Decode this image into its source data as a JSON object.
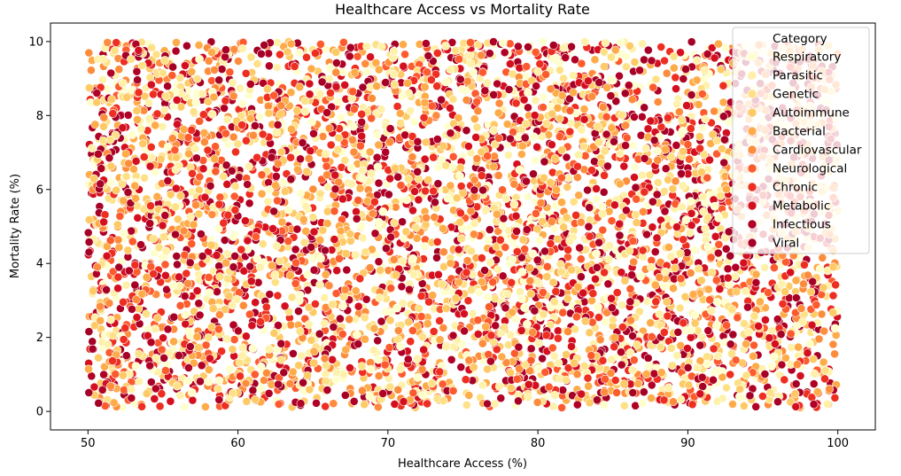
{
  "chart_data": {
    "type": "scatter",
    "title": "Healthcare Access vs Mortality Rate",
    "xlabel": "Healthcare Access (%)",
    "ylabel": "Mortality Rate (%)",
    "xlim": [
      47.5,
      102.5
    ],
    "ylim": [
      -0.5,
      10.5
    ],
    "x_ticks": [
      50,
      60,
      70,
      80,
      90,
      100
    ],
    "y_ticks": [
      0,
      2,
      4,
      6,
      8,
      10
    ],
    "grid": false,
    "legend": {
      "title": "Category",
      "placement": "top-right"
    },
    "series": [
      {
        "name": "Respiratory",
        "color": "#ffffcc",
        "x_range": [
          50,
          100
        ],
        "y_range": [
          0.1,
          10
        ]
      },
      {
        "name": "Parasitic",
        "color": "#fff1a9",
        "x_range": [
          50,
          100
        ],
        "y_range": [
          0.1,
          10
        ]
      },
      {
        "name": "Genetic",
        "color": "#fee187",
        "x_range": [
          50,
          100
        ],
        "y_range": [
          0.1,
          10
        ]
      },
      {
        "name": "Autoimmune",
        "color": "#feca66",
        "x_range": [
          50,
          100
        ],
        "y_range": [
          0.1,
          10
        ]
      },
      {
        "name": "Bacterial",
        "color": "#feab49",
        "x_range": [
          50,
          100
        ],
        "y_range": [
          0.1,
          10
        ]
      },
      {
        "name": "Cardiovascular",
        "color": "#fd8d3c",
        "x_range": [
          50,
          100
        ],
        "y_range": [
          0.1,
          10
        ]
      },
      {
        "name": "Neurological",
        "color": "#fc5b2e",
        "x_range": [
          50,
          100
        ],
        "y_range": [
          0.1,
          10
        ]
      },
      {
        "name": "Chronic",
        "color": "#ed2e21",
        "x_range": [
          50,
          100
        ],
        "y_range": [
          0.1,
          10
        ]
      },
      {
        "name": "Metabolic",
        "color": "#d41020",
        "x_range": [
          50,
          100
        ],
        "y_range": [
          0.1,
          10
        ]
      },
      {
        "name": "Infectious",
        "color": "#b00026",
        "x_range": [
          50,
          100
        ],
        "y_range": [
          0.1,
          10
        ]
      },
      {
        "name": "Viral",
        "color": "#a50026",
        "x_range": [
          50,
          100
        ],
        "y_range": [
          0.1,
          10
        ]
      }
    ]
  }
}
